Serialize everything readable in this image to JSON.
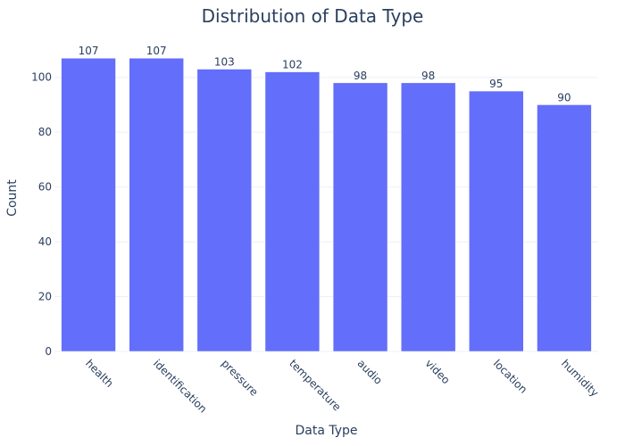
{
  "chart_data": {
    "type": "bar",
    "title": "Distribution of Data Type",
    "xlabel": "Data Type",
    "ylabel": "Count",
    "categories": [
      "health",
      "identification",
      "pressure",
      "temperature",
      "audio",
      "video",
      "location",
      "humidity"
    ],
    "values": [
      107,
      107,
      103,
      102,
      98,
      98,
      95,
      90
    ],
    "ylim": [
      0,
      112.6
    ],
    "yticks": [
      0,
      20,
      40,
      60,
      80,
      100
    ],
    "bar_color": "#636efa",
    "grid": true,
    "legend": false
  }
}
